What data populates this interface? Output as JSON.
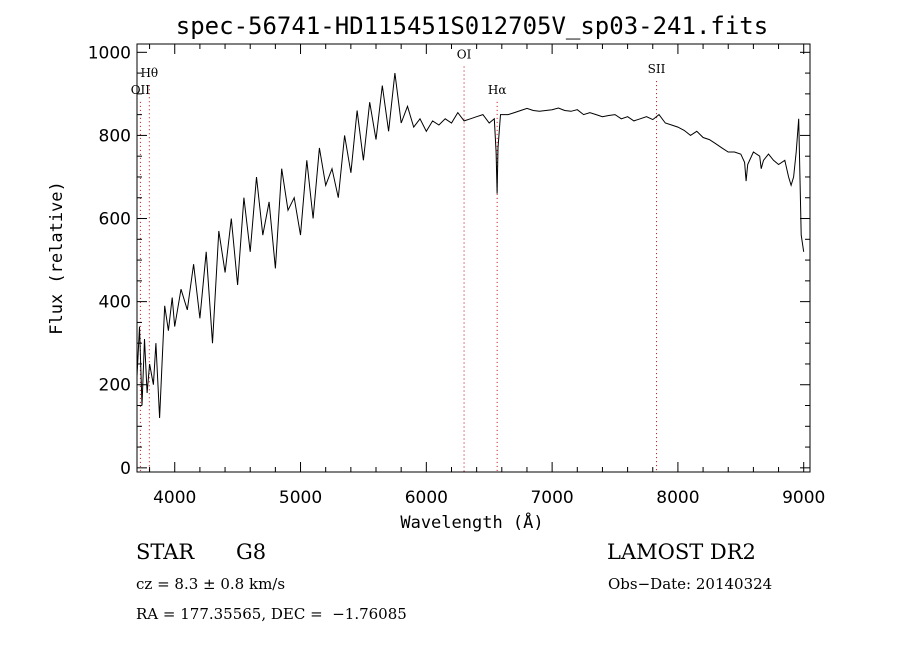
{
  "chart_data": {
    "type": "line",
    "title": "spec-56741-HD115451S012705V_sp03-241.fits",
    "xlabel": "Wavelength (Å)",
    "ylabel": "Flux (relative)",
    "xlim": [
      3700,
      9050
    ],
    "ylim": [
      -10,
      1020
    ],
    "xticks": [
      4000,
      5000,
      6000,
      7000,
      8000,
      9000
    ],
    "yticks": [
      0,
      200,
      400,
      600,
      800,
      1000
    ],
    "grid": false,
    "line_color": "#000000",
    "marker_color": "#cc0000",
    "series": [
      {
        "x": [
          3700,
          3720,
          3740,
          3760,
          3780,
          3800,
          3830,
          3850,
          3880,
          3900,
          3920,
          3950,
          3980,
          4000,
          4050,
          4100,
          4150,
          4200,
          4250,
          4300,
          4350,
          4400,
          4450,
          4500,
          4550,
          4600,
          4650,
          4700,
          4750,
          4800,
          4850,
          4900,
          4950,
          5000,
          5050,
          5100,
          5150,
          5200,
          5250,
          5300,
          5350,
          5400,
          5450,
          5500,
          5550,
          5600,
          5650,
          5700,
          5750,
          5800,
          5850,
          5900,
          5950,
          6000,
          6050,
          6100,
          6150,
          6200,
          6250,
          6300,
          6350,
          6400,
          6450,
          6500,
          6540,
          6555,
          6563,
          6570,
          6590,
          6650,
          6700,
          6750,
          6800,
          6850,
          6900,
          6950,
          7000,
          7050,
          7100,
          7150,
          7200,
          7250,
          7300,
          7350,
          7400,
          7450,
          7500,
          7550,
          7600,
          7650,
          7700,
          7750,
          7800,
          7850,
          7900,
          7950,
          8000,
          8050,
          8100,
          8150,
          8200,
          8250,
          8300,
          8350,
          8400,
          8450,
          8500,
          8530,
          8542,
          8555,
          8600,
          8650,
          8662,
          8680,
          8720,
          8760,
          8800,
          8850,
          8880,
          8900,
          8920,
          8940,
          8960,
          8980,
          9000
        ],
        "y": [
          220,
          340,
          150,
          310,
          180,
          250,
          200,
          300,
          120,
          260,
          390,
          330,
          410,
          340,
          430,
          380,
          490,
          360,
          520,
          300,
          570,
          470,
          600,
          440,
          650,
          520,
          700,
          560,
          640,
          480,
          720,
          620,
          650,
          560,
          740,
          600,
          770,
          680,
          720,
          650,
          800,
          710,
          860,
          740,
          880,
          790,
          920,
          810,
          950,
          830,
          870,
          820,
          840,
          810,
          835,
          825,
          840,
          830,
          855,
          835,
          840,
          845,
          850,
          830,
          840,
          760,
          660,
          770,
          850,
          850,
          855,
          860,
          865,
          860,
          858,
          860,
          862,
          866,
          860,
          858,
          862,
          850,
          855,
          850,
          845,
          848,
          850,
          840,
          845,
          835,
          840,
          845,
          838,
          850,
          830,
          825,
          820,
          812,
          800,
          810,
          795,
          790,
          780,
          770,
          760,
          760,
          755,
          735,
          690,
          730,
          760,
          750,
          720,
          740,
          755,
          740,
          730,
          740,
          700,
          680,
          700,
          760,
          840,
          560,
          520
        ]
      }
    ],
    "line_markers": [
      {
        "label": "OII",
        "x": 3727,
        "label_y": 900
      },
      {
        "label": "Hθ",
        "x": 3798,
        "label_y": 940
      },
      {
        "label": "OI",
        "x": 6300,
        "label_y": 985
      },
      {
        "label": "Hα",
        "x": 6563,
        "label_y": 900
      },
      {
        "label": "SII",
        "x": 7830,
        "label_y": 950
      }
    ]
  },
  "footer": {
    "object_class": "STAR",
    "subclass": "G8",
    "survey": "LAMOST DR2",
    "redshift": "cz = 8.3 ± 0.8 km/s",
    "obs_date": "Obs−Date: 20140324",
    "coords": "RA = 177.35565, DEC =  −1.76085"
  }
}
